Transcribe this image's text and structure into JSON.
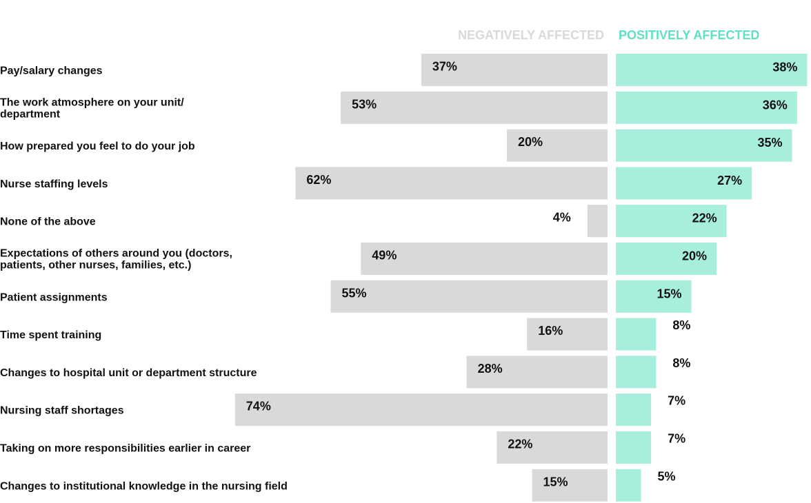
{
  "chart_data": {
    "type": "bar",
    "legend": {
      "negative": "NEGATIVELY AFFECTED",
      "positive": "POSITIVELY AFFECTED"
    },
    "colors": {
      "negative": "#d9d9d9",
      "positive": "#a8eedd"
    },
    "categories": [
      [
        "Pay/salary changes"
      ],
      [
        "The work atmosphere on your unit/",
        "department"
      ],
      [
        "How prepared you feel to do your job"
      ],
      [
        "Nurse staffing levels"
      ],
      [
        "None of the above"
      ],
      [
        "Expectations of others around you (doctors,",
        "patients, other nurses, families, etc.)"
      ],
      [
        "Patient assignments"
      ],
      [
        "Time spent training"
      ],
      [
        "Changes to hospital unit or department structure"
      ],
      [
        "Nursing staff shortages"
      ],
      [
        "Taking on more responsibilities earlier in career"
      ],
      [
        "Changes to institutional knowledge in the nursing field"
      ]
    ],
    "series": [
      {
        "name": "NEGATIVELY AFFECTED",
        "values": [
          37,
          53,
          20,
          62,
          4,
          49,
          55,
          16,
          28,
          74,
          22,
          15
        ]
      },
      {
        "name": "POSITIVELY AFFECTED",
        "values": [
          38,
          36,
          35,
          27,
          22,
          20,
          15,
          8,
          8,
          7,
          7,
          5
        ]
      }
    ]
  }
}
